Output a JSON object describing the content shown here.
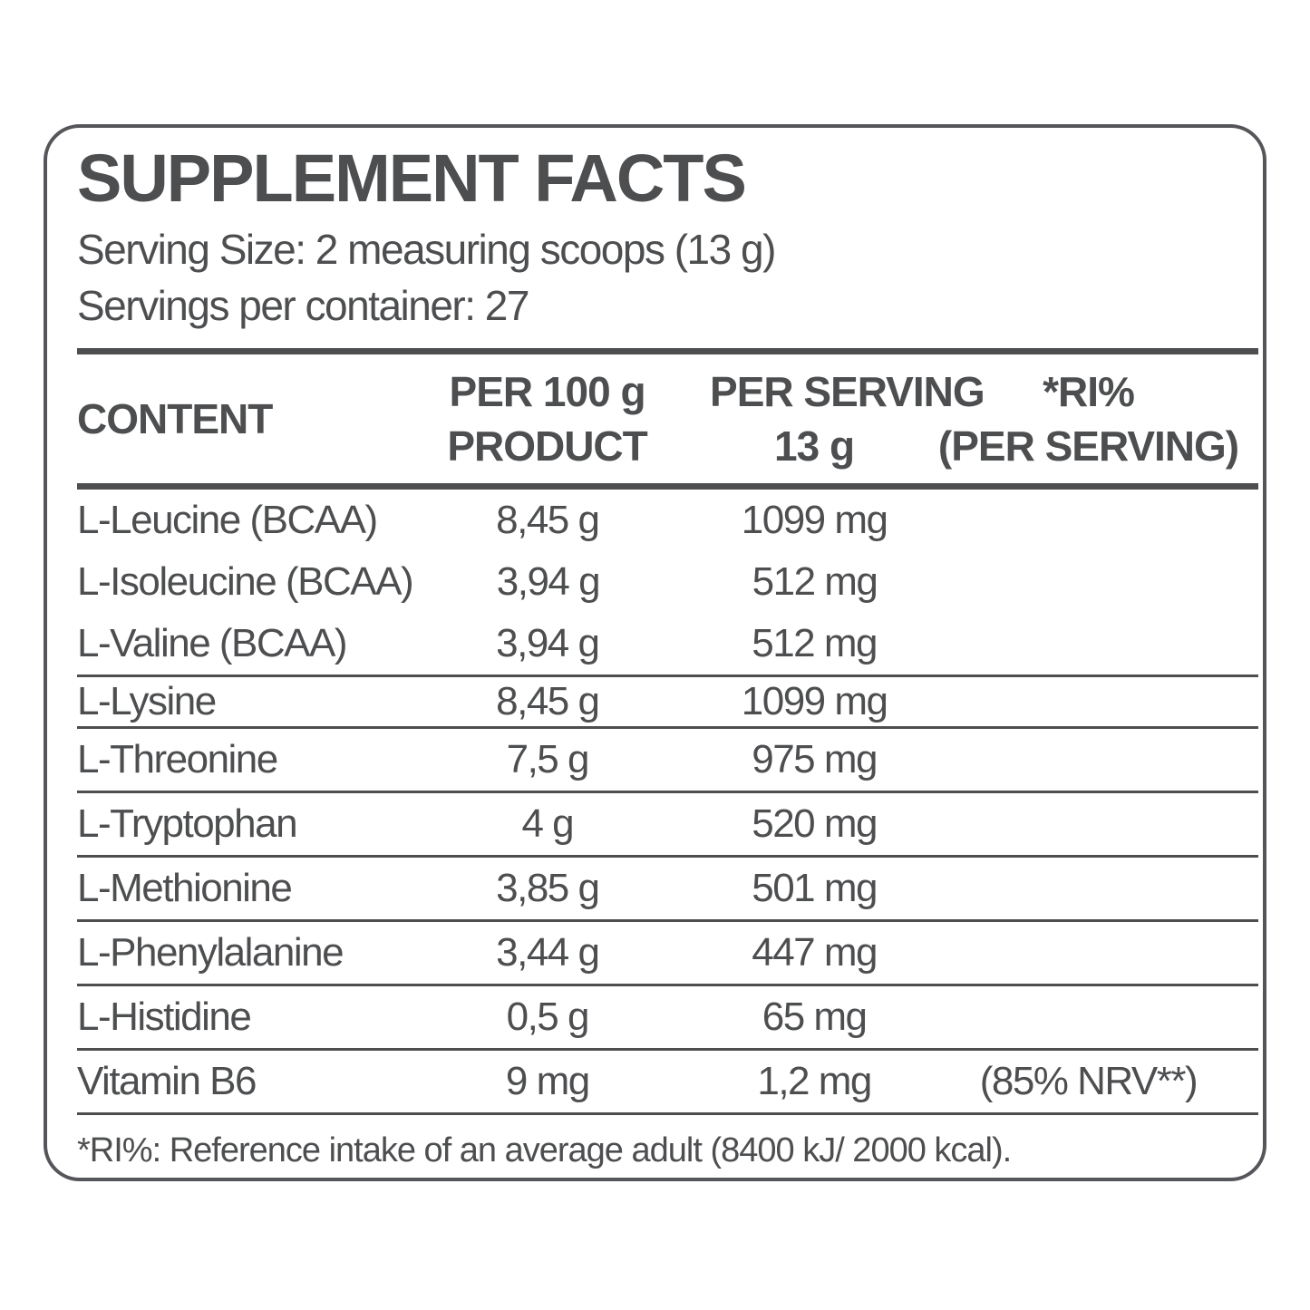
{
  "colors": {
    "ink": "#4d4e50",
    "border": "#55565a",
    "background": "#ffffff"
  },
  "label": {
    "title": "SUPPLEMENT FACTS",
    "serving_size": "Serving Size: 2 measuring scoops (13 g)",
    "servings_per_container": "Servings per container: 27",
    "footnote": "*RI%: Reference intake of an average adult (8400 kJ/ 2000 kcal)."
  },
  "table": {
    "headers": {
      "content": "CONTENT",
      "per_100g": [
        "PER 100 g",
        "PRODUCT"
      ],
      "per_serving": [
        "PER SERVING",
        "13 g"
      ],
      "ri": [
        "*RI%",
        "(PER SERVING)"
      ]
    },
    "rows": [
      {
        "name": "L-Leucine (BCAA)",
        "per_100g": "8,45 g",
        "per_serving": "1099 mg",
        "ri": "",
        "divider_after": false,
        "tight": false
      },
      {
        "name": "L-Isoleucine (BCAA)",
        "per_100g": "3,94 g",
        "per_serving": "512 mg",
        "ri": "",
        "divider_after": false,
        "tight": false
      },
      {
        "name": "L-Valine (BCAA)",
        "per_100g": "3,94 g",
        "per_serving": "512 mg",
        "ri": "",
        "divider_after": true,
        "tight": false
      },
      {
        "name": "L-Lysine",
        "per_100g": "8,45 g",
        "per_serving": "1099 mg",
        "ri": "",
        "divider_after": true,
        "tight": true
      },
      {
        "name": "L-Threonine",
        "per_100g": "7,5 g",
        "per_serving": "975 mg",
        "ri": "",
        "divider_after": true,
        "tight": false
      },
      {
        "name": "L-Tryptophan",
        "per_100g": "4 g",
        "per_serving": "520 mg",
        "ri": "",
        "divider_after": true,
        "tight": false
      },
      {
        "name": "L-Methionine",
        "per_100g": "3,85 g",
        "per_serving": "501 mg",
        "ri": "",
        "divider_after": true,
        "tight": false
      },
      {
        "name": "L-Phenylalanine",
        "per_100g": "3,44 g",
        "per_serving": "447 mg",
        "ri": "",
        "divider_after": true,
        "tight": false
      },
      {
        "name": "L-Histidine",
        "per_100g": "0,5 g",
        "per_serving": "65 mg",
        "ri": "",
        "divider_after": true,
        "tight": false
      },
      {
        "name": "Vitamin B6",
        "per_100g": "9 mg",
        "per_serving": "1,2 mg",
        "ri": "(85% NRV**)",
        "divider_after": true,
        "tight": false
      }
    ]
  }
}
